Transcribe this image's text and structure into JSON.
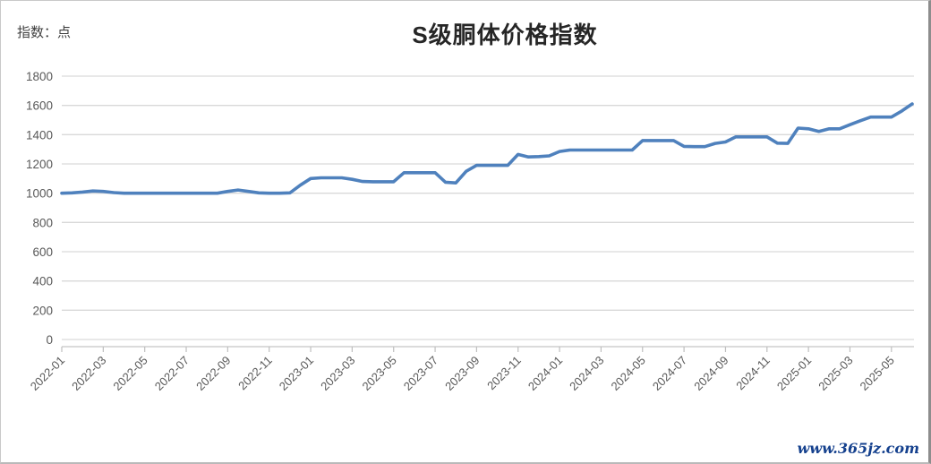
{
  "header": {
    "unit_label": "指数：点",
    "title": "S级胴体价格指数"
  },
  "watermark": {
    "text": "www.365jz.com",
    "color": "#15418e"
  },
  "colors": {
    "line": "#4f81bd",
    "gridline": "#d9d9d9",
    "axis_line": "#cfcfcf",
    "tick": "#bfbfbf",
    "axis_text": "#595959"
  },
  "chart_data": {
    "type": "line",
    "title": "S级胴体价格指数",
    "y_axis_unit_label": "指数：点",
    "ylim": [
      0,
      1800
    ],
    "ytick_step": 200,
    "grid": true,
    "legend_position": "none",
    "line_color": "#4f81bd",
    "x_tick_labels": [
      "2022-01",
      "2022-03",
      "2022-05",
      "2022-07",
      "2022-09",
      "2022-11",
      "2023-01",
      "2023-03",
      "2023-05",
      "2023-07",
      "2023-09",
      "2023-11",
      "2024-01",
      "2024-03",
      "2024-05",
      "2024-07",
      "2024-09",
      "2024-11",
      "2025-01",
      "2025-03",
      "2025-05"
    ],
    "x_range_note": "semi-monthly points from 2022-01 to 2025-06",
    "points_per_month": 2,
    "values": [
      1000,
      1002,
      1008,
      1015,
      1012,
      1004,
      1000,
      1000,
      1000,
      1000,
      1000,
      1000,
      1000,
      1000,
      1000,
      1000,
      1012,
      1022,
      1012,
      1002,
      1000,
      1000,
      1002,
      1055,
      1100,
      1105,
      1105,
      1105,
      1095,
      1080,
      1078,
      1078,
      1078,
      1140,
      1140,
      1140,
      1140,
      1075,
      1070,
      1150,
      1190,
      1190,
      1190,
      1190,
      1265,
      1248,
      1250,
      1255,
      1285,
      1295,
      1295,
      1295,
      1295,
      1295,
      1295,
      1295,
      1360,
      1360,
      1360,
      1360,
      1320,
      1318,
      1318,
      1340,
      1350,
      1385,
      1385,
      1385,
      1385,
      1342,
      1340,
      1445,
      1440,
      1422,
      1440,
      1440,
      1468,
      1495,
      1520,
      1520,
      1520,
      1562,
      1610
    ]
  }
}
